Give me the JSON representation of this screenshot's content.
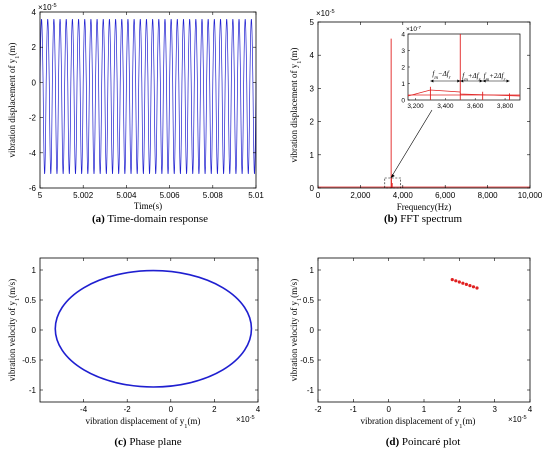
{
  "chart_data": [
    {
      "id": "a",
      "type": "line",
      "caption_label": "(a)",
      "caption_text": "Time-domain response",
      "xlabel": "Time(s)",
      "ylabel_main": "vibration displacement of y",
      "ylabel_sub": "1",
      "ylabel_unit": "(m)",
      "y_multiplier": "×10",
      "y_exponent": "-5",
      "xlim": [
        5,
        5.01
      ],
      "ylim": [
        -6,
        4
      ],
      "xticks": [
        "5",
        "5.002",
        "5.004",
        "5.006",
        "5.008",
        "5.01"
      ],
      "yticks": [
        "-6",
        "-4",
        "-2",
        "0",
        "2",
        "4"
      ],
      "signal": {
        "frequency_hz": 3500,
        "max": 3.6,
        "min": -5.2,
        "color": "#1f1fd0"
      }
    },
    {
      "id": "b",
      "type": "line",
      "caption_label": "(b)",
      "caption_text": "FFT spectrum",
      "xlabel": "Frequency(Hz)",
      "ylabel_main": "vibration displacement of y",
      "ylabel_sub": "1",
      "ylabel_unit": "(m)",
      "y_multiplier": "×10",
      "y_exponent": "-5",
      "xlim": [
        0,
        10000
      ],
      "ylim": [
        0,
        5
      ],
      "xticks": [
        "0",
        "2,000",
        "4,000",
        "6,000",
        "8,000",
        "10,000"
      ],
      "yticks": [
        "0",
        "1",
        "2",
        "3",
        "4",
        "5"
      ],
      "peaks": [
        {
          "x": 3450,
          "y": 4.5
        },
        {
          "x": 3465,
          "y": 0.3
        },
        {
          "x": 3500,
          "y": 0.15
        }
      ],
      "color": "#e02020",
      "inset": {
        "y_multiplier": "×10",
        "y_exponent": "-7",
        "xlim": [
          3150,
          3900
        ],
        "ylim": [
          0,
          4
        ],
        "xticks": [
          "3,200",
          "3,400",
          "3,600",
          "3,800"
        ],
        "yticks": [
          "0",
          "1",
          "2",
          "3",
          "4"
        ],
        "peaks": [
          {
            "x": 3300,
            "y": 0.8
          },
          {
            "x": 3500,
            "y": 4.0
          },
          {
            "x": 3650,
            "y": 0.5
          },
          {
            "x": 3830,
            "y": 0.4
          }
        ],
        "annotations": {
          "a1": "f",
          "a1_sub": "m",
          "a1_rest": "−Δf",
          "a1_sub2": "r",
          "a2": "f",
          "a2_sub": "m",
          "a2_rest": "+Δf",
          "a2_sub2": "r",
          "a3": "f",
          "a3_sub": "m",
          "a3_rest": "+2Δf",
          "a3_sub2": "r"
        }
      }
    },
    {
      "id": "c",
      "type": "line",
      "caption_label": "(c)",
      "caption_text": "Phase plane",
      "xlabel_main": "vibration displacement of y",
      "xlabel_sub": "1",
      "xlabel_unit": "(m)",
      "x_multiplier": "×10",
      "x_exponent": "-5",
      "ylabel_main": "vibration velocity of y",
      "ylabel_sub": "1",
      "ylabel_unit": "(m/s)",
      "xlim": [
        -6,
        4
      ],
      "ylim": [
        -1.2,
        1.2
      ],
      "xticks": [
        "-4",
        "-2",
        "0",
        "2",
        "4"
      ],
      "yticks": [
        "-1",
        "-0.5",
        "0",
        "0.5",
        "1"
      ],
      "ellipse": {
        "cx": -0.8,
        "cy": 0.02,
        "rx": 4.5,
        "ry": 0.97,
        "color": "#1f1fd0"
      }
    },
    {
      "id": "d",
      "type": "scatter",
      "caption_label": "(d)",
      "caption_text": "Poincaré plot",
      "xlabel_main": "vibration displacement of y",
      "xlabel_sub": "1",
      "xlabel_unit": "(m)",
      "x_multiplier": "×10",
      "x_exponent": "-5",
      "ylabel_main": "vibration velocity of y",
      "ylabel_sub": "1",
      "ylabel_unit": "(m/s)",
      "xlim": [
        -2,
        4
      ],
      "ylim": [
        -1.2,
        1.2
      ],
      "xticks": [
        "-2",
        "-1",
        "0",
        "1",
        "2",
        "3",
        "4"
      ],
      "yticks": [
        "-1",
        "-0.5",
        "0",
        "0.5",
        "1"
      ],
      "color": "#e02020",
      "points": [
        [
          1.8,
          0.84
        ],
        [
          1.9,
          0.82
        ],
        [
          2.0,
          0.8
        ],
        [
          2.1,
          0.78
        ],
        [
          2.2,
          0.76
        ],
        [
          2.3,
          0.74
        ],
        [
          2.4,
          0.72
        ],
        [
          2.5,
          0.7
        ]
      ]
    }
  ]
}
